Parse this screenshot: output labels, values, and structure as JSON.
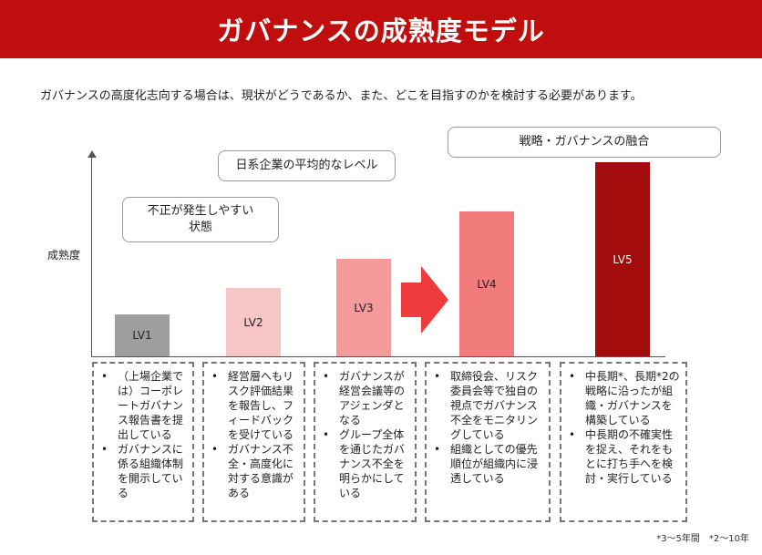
{
  "header": {
    "title": "ガバナンスの成熟度モデル"
  },
  "subtitle": "ガバナンスの高度化志向する場合は、現状がどうであるか、また、どこを目指すのかを検討する必要があります。",
  "callouts": {
    "top_right": "戦略・ガバナンスの融合",
    "middle": "日系企業の平均的なレベル",
    "left": "不正が発生しやすい\n状態"
  },
  "axis": {
    "y_label": "成熟度"
  },
  "levels": [
    {
      "label": "LV1",
      "level": 1,
      "color": "#9e9e9e",
      "label_color": "#222222",
      "items": [
        "（上場企業では）コーポレートガバナンス報告書を提出している",
        "ガバナンスに係る組織体制を開示している"
      ]
    },
    {
      "label": "LV2",
      "level": 2,
      "color": "#f6c6c6",
      "label_color": "#222222",
      "items": [
        "経営層へもリスク評価結果を報告し、フィードバックを受けている",
        "ガバナンス不全・高度化に対する意識がある"
      ]
    },
    {
      "label": "LV3",
      "level": 3,
      "color": "#f49a9a",
      "label_color": "#222222",
      "items": [
        "ガバナンスが経営会議等のアジェンダとなる",
        "グループ全体を通じたガバナンス不全を明らかにしている"
      ]
    },
    {
      "label": "LV4",
      "level": 4,
      "color": "#f27b7b",
      "label_color": "#222222",
      "items": [
        "取締役会、リスク委員会等で独自の視点でガバナンス不全をモニタリングしている",
        "組織としての優先順位が組織内に浸透している"
      ]
    },
    {
      "label": "LV5",
      "level": 5,
      "color": "#a30c0c",
      "label_color": "#ffffff",
      "items": [
        "中長期*、長期*2の戦略に沿ったが組織・ガバナンスを構築している",
        "中長期の不確実性を捉え、それをもとに打ち手へを検討・実行している"
      ]
    }
  ],
  "arrow": {
    "color": "#ef3b3b"
  },
  "footnote": "*3〜5年間　*2〜10年"
}
